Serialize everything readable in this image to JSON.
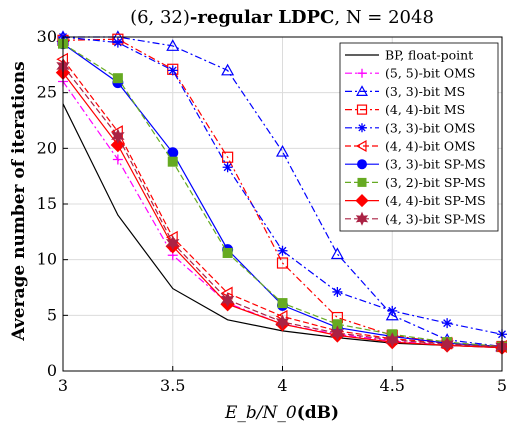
{
  "chart_data": {
    "type": "line",
    "title_plain": "(6, 32)",
    "title_bold": "-regular LDPC",
    "title_tail": ", N = 2048",
    "xlabel_main": "E_b/N_0",
    "xlabel_unit": "(dB)",
    "ylabel": "Average number of iterations",
    "xlim": [
      3,
      5
    ],
    "ylim": [
      0,
      30
    ],
    "xticks": [
      3,
      3.5,
      4,
      4.5,
      5
    ],
    "yticks": [
      0,
      5,
      10,
      15,
      20,
      25,
      30
    ],
    "grid": true,
    "legend_position": "top-right",
    "x": [
      3,
      3.25,
      3.5,
      3.75,
      4,
      4.25,
      4.5,
      4.75,
      5
    ],
    "series": [
      {
        "name": "BP, float-point",
        "color": "#000000",
        "dash": "solid",
        "marker": "none",
        "values": [
          24,
          14,
          7.4,
          4.6,
          3.6,
          3.0,
          2.5,
          2.3,
          2.1
        ]
      },
      {
        "name": "(5, 5)-bit OMS",
        "color": "#ff00ff",
        "dash": "dashdot",
        "marker": "plus",
        "values": [
          26,
          19,
          10.4,
          6.1,
          4.2,
          3.3,
          2.7,
          2.3,
          2.1
        ]
      },
      {
        "name": "(3, 3)-bit MS",
        "color": "#0000ff",
        "dash": "dashdot",
        "marker": "triangle-up",
        "values": [
          30,
          30,
          29.2,
          27,
          19.7,
          10.5,
          5,
          2.8,
          2.2
        ]
      },
      {
        "name": "(4, 4)-bit MS",
        "color": "#ff0000",
        "dash": "dashdot",
        "marker": "square-open",
        "values": [
          29.7,
          29.8,
          27.1,
          19.2,
          9.7,
          4.8,
          3.2,
          2.5,
          2.2
        ]
      },
      {
        "name": "(3, 3)-bit OMS",
        "color": "#0000ff",
        "dash": "dashdot",
        "marker": "asterisk",
        "values": [
          30,
          29.5,
          27,
          18.3,
          10.8,
          7.1,
          5.4,
          4.3,
          3.3
        ]
      },
      {
        "name": "(4, 4)-bit OMS",
        "color": "#ff0000",
        "dash": "dashed",
        "marker": "triangle-left",
        "values": [
          28,
          21.5,
          12,
          7,
          4.9,
          3.6,
          2.9,
          2.5,
          2.2
        ]
      },
      {
        "name": "(3, 3)-bit SP-MS",
        "color": "#0000ff",
        "dash": "solid",
        "marker": "circle",
        "values": [
          29.4,
          25.9,
          19.6,
          10.9,
          5.9,
          3.9,
          3.1,
          2.5,
          2.2
        ]
      },
      {
        "name": "(3, 2)-bit SP-MS",
        "color": "#66aa22",
        "dash": "dashed",
        "marker": "square",
        "values": [
          29.4,
          26.3,
          18.8,
          10.6,
          6.1,
          4.2,
          3.3,
          2.6,
          2.2
        ]
      },
      {
        "name": "(4, 4)-bit SP-MS",
        "color": "#ff0000",
        "dash": "solid",
        "marker": "diamond",
        "values": [
          26.8,
          20.3,
          11.2,
          6.0,
          4.2,
          3.2,
          2.6,
          2.3,
          2.1
        ]
      },
      {
        "name": "(4, 3)-bit SP-MS",
        "color": "#aa2244",
        "dash": "dashed",
        "marker": "hexagram",
        "values": [
          27.4,
          21.1,
          11.5,
          6.4,
          4.4,
          3.4,
          2.8,
          2.4,
          2.2
        ]
      }
    ]
  }
}
